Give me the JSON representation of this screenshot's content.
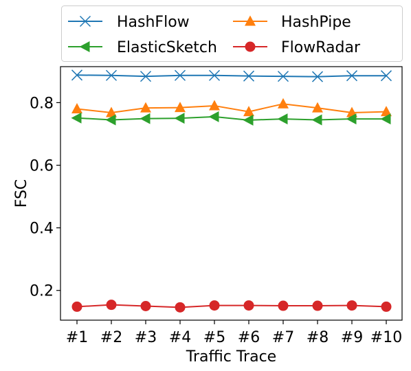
{
  "chart_data": {
    "type": "line",
    "title": "",
    "xlabel": "Traffic Trace",
    "ylabel": "FSC",
    "categories": [
      "#1",
      "#2",
      "#3",
      "#4",
      "#5",
      "#6",
      "#7",
      "#8",
      "#9",
      "#10"
    ],
    "ylim": [
      0.105,
      0.915
    ],
    "yticks": [
      0.2,
      0.4,
      0.6,
      0.8
    ],
    "ytick_labels": [
      "0.2",
      "0.4",
      "0.6",
      "0.8"
    ],
    "grid": false,
    "legend": {
      "placement": "top",
      "columns": 2
    },
    "series": [
      {
        "name": "HashFlow",
        "color": "#1f77b4",
        "marker": "x",
        "values": [
          0.888,
          0.887,
          0.884,
          0.887,
          0.887,
          0.885,
          0.884,
          0.883,
          0.886,
          0.886
        ]
      },
      {
        "name": "HashPipe",
        "color": "#ff7f0e",
        "marker": "triangle-up",
        "values": [
          0.78,
          0.768,
          0.783,
          0.784,
          0.79,
          0.771,
          0.796,
          0.783,
          0.768,
          0.771
        ]
      },
      {
        "name": "ElasticSketch",
        "color": "#2ca02c",
        "marker": "triangle-left",
        "values": [
          0.751,
          0.745,
          0.749,
          0.75,
          0.755,
          0.744,
          0.748,
          0.745,
          0.748,
          0.748
        ]
      },
      {
        "name": "FlowRadar",
        "color": "#d62728",
        "marker": "circle",
        "values": [
          0.148,
          0.154,
          0.15,
          0.146,
          0.152,
          0.152,
          0.151,
          0.151,
          0.152,
          0.148
        ]
      }
    ]
  }
}
